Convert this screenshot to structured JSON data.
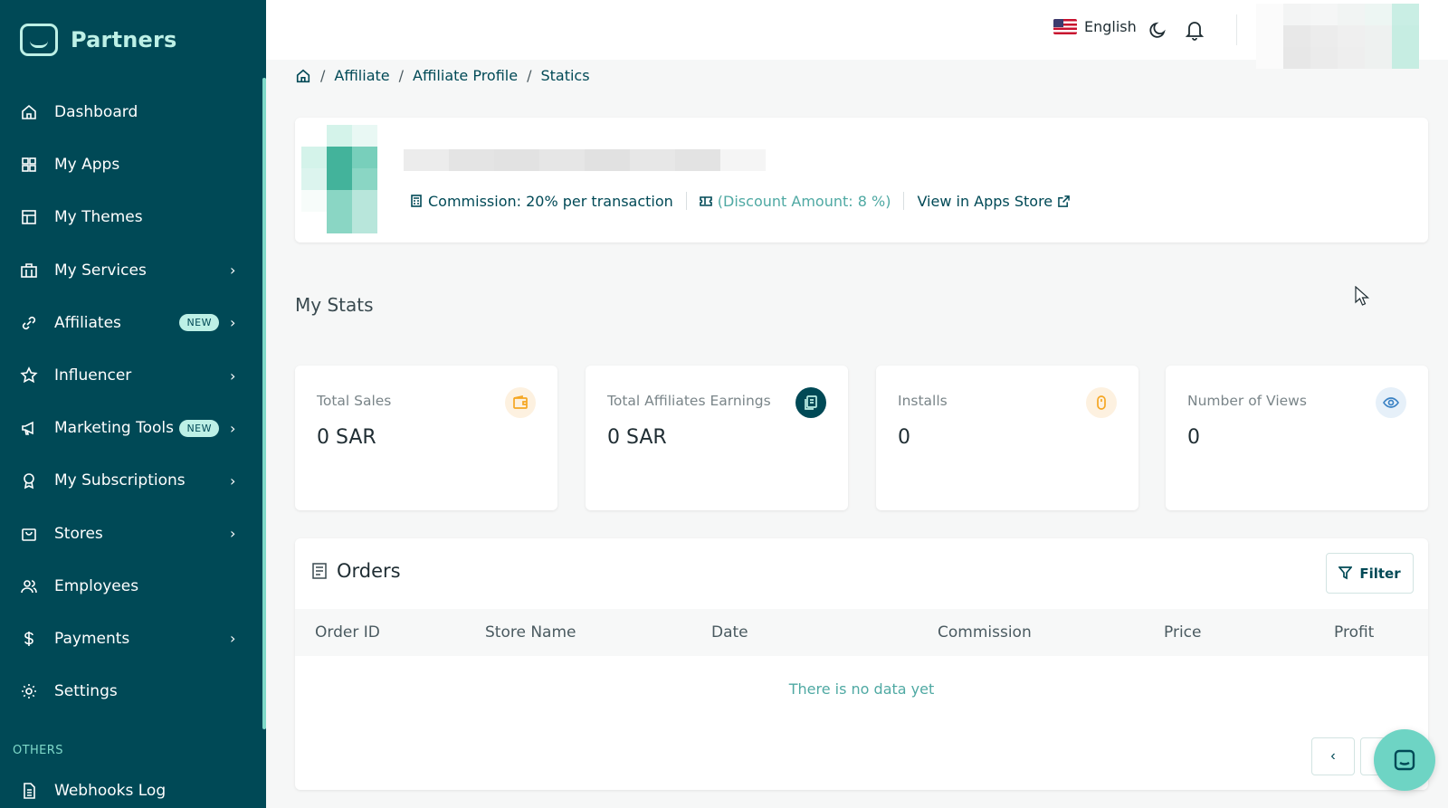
{
  "brand": {
    "name": "Partners"
  },
  "sidebar": {
    "items": [
      {
        "label": "Dashboard",
        "icon": "home-icon",
        "badge": "",
        "chevron": false
      },
      {
        "label": "My Apps",
        "icon": "grid-icon",
        "badge": "",
        "chevron": false
      },
      {
        "label": "My Themes",
        "icon": "layout-icon",
        "badge": "",
        "chevron": false
      },
      {
        "label": "My Services",
        "icon": "building-icon",
        "badge": "",
        "chevron": true
      },
      {
        "label": "Affiliates",
        "icon": "link-icon",
        "badge": "NEW",
        "chevron": true
      },
      {
        "label": "Influencer",
        "icon": "star-icon",
        "badge": "",
        "chevron": true
      },
      {
        "label": "Marketing Tools",
        "icon": "megaphone-icon",
        "badge": "NEW",
        "chevron": true
      },
      {
        "label": "My Subscriptions",
        "icon": "award-icon",
        "badge": "",
        "chevron": true
      },
      {
        "label": "Stores",
        "icon": "bag-icon",
        "badge": "",
        "chevron": true
      },
      {
        "label": "Employees",
        "icon": "users-icon",
        "badge": "",
        "chevron": false
      },
      {
        "label": "Payments",
        "icon": "dollar-icon",
        "badge": "",
        "chevron": true
      },
      {
        "label": "Settings",
        "icon": "gear-icon",
        "badge": "",
        "chevron": false
      }
    ],
    "section_others": "OTHERS",
    "webhooks_label": "Webhooks Log"
  },
  "header": {
    "language": "English"
  },
  "breadcrumb": {
    "items": [
      "Affiliate",
      "Affiliate Profile",
      "Statics"
    ],
    "separator": "/"
  },
  "profile": {
    "commission": "Commission: 20% per transaction",
    "discount": "(Discount Amount: 8 %)",
    "store_link": "View in Apps Store"
  },
  "stats": {
    "title": "My Stats",
    "cards": [
      {
        "label": "Total Sales",
        "value": "0 SAR",
        "icon": "wallet-icon",
        "color": "#f5a623"
      },
      {
        "label": "Total Affiliates Earnings",
        "value": "0 SAR",
        "icon": "copy-icon",
        "color": "#004956"
      },
      {
        "label": "Installs",
        "value": "0",
        "icon": "mouse-icon",
        "color": "#f5a623"
      },
      {
        "label": "Number of Views",
        "value": "0",
        "icon": "eye-icon",
        "color": "#3b82c4"
      }
    ]
  },
  "orders": {
    "title": "Orders",
    "filter_label": "Filter",
    "columns": [
      "Order ID",
      "Store Name",
      "Date",
      "Commission",
      "Price",
      "Profit"
    ],
    "empty_message": "There is no data yet"
  },
  "colors": {
    "sidebar": "#004956",
    "accent": "#6ed4c4",
    "link": "#004956"
  }
}
